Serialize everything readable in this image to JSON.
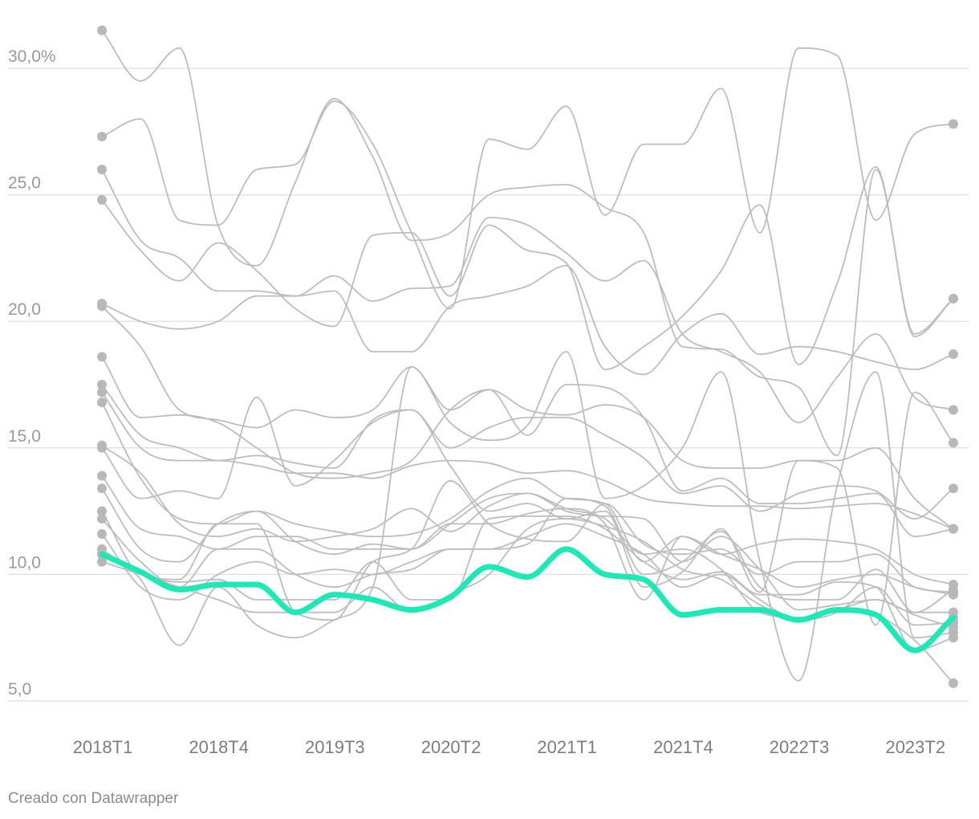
{
  "footer": {
    "credit": "Creado con Datawrapper"
  },
  "colors": {
    "background_lines": "#bdbdbd",
    "endpoint_dots": "#b8b8b8",
    "highlight": "#1de9b6",
    "gridlines": "#e3e3e3"
  },
  "chart_data": {
    "type": "line",
    "title": "",
    "xlabel": "",
    "ylabel": "",
    "ylim": [
      5,
      31.5
    ],
    "yticks": [
      {
        "value": 30,
        "label": "30,0%"
      },
      {
        "value": 25,
        "label": "25,0"
      },
      {
        "value": 20,
        "label": "20,0"
      },
      {
        "value": 15,
        "label": "15,0"
      },
      {
        "value": 10,
        "label": "10,0"
      },
      {
        "value": 5,
        "label": "5,0"
      }
    ],
    "x": [
      "2018T1",
      "2018T2",
      "2018T3",
      "2018T4",
      "2019T1",
      "2019T2",
      "2019T3",
      "2019T4",
      "2020T1",
      "2020T2",
      "2020T3",
      "2020T4",
      "2021T1",
      "2021T2",
      "2021T3",
      "2021T4",
      "2022T1",
      "2022T2",
      "2022T3",
      "2022T4",
      "2023T1",
      "2023T2",
      "2023T3"
    ],
    "xtick_labels": [
      "2018T1",
      "2018T4",
      "2019T3",
      "2020T2",
      "2021T1",
      "2021T4",
      "2022T3",
      "2023T2"
    ],
    "grid": true,
    "legend": "none",
    "highlight_series_index": 0,
    "series": [
      {
        "values": [
          10.8,
          10.1,
          9.4,
          9.6,
          9.6,
          8.5,
          9.2,
          9.0,
          8.6,
          9.1,
          10.3,
          9.9,
          11.0,
          10.0,
          9.8,
          8.4,
          8.6,
          8.6,
          8.2,
          8.6,
          8.4,
          7.0,
          8.3
        ]
      },
      {
        "values": [
          31.5,
          29.5,
          30.8,
          23.8,
          22.2,
          25.5,
          28.8,
          26.5,
          23.2,
          23.5,
          25.0,
          25.3,
          25.4,
          24.5,
          23.5,
          19.0,
          18.9,
          17.8,
          17.4,
          14.7,
          26.0,
          19.5,
          20.9
        ]
      },
      {
        "values": [
          27.3,
          28.0,
          24.0,
          23.8,
          26.0,
          26.2,
          28.7,
          27.0,
          23.5,
          20.5,
          27.2,
          26.8,
          28.5,
          24.2,
          27.0,
          27.0,
          29.2,
          23.5,
          30.8,
          30.5,
          24.0,
          27.4,
          27.8
        ]
      },
      {
        "values": [
          26.0,
          23.2,
          22.5,
          21.2,
          21.2,
          21.0,
          21.8,
          20.8,
          21.3,
          21.4,
          24.1,
          23.8,
          22.7,
          21.6,
          22.4,
          19.5,
          18.8,
          18.0,
          16.0,
          17.8,
          19.5,
          17.0,
          16.5
        ]
      },
      {
        "values": [
          24.8,
          22.8,
          21.6,
          23.1,
          22.0,
          20.5,
          19.8,
          23.4,
          23.5,
          21.0,
          23.8,
          22.8,
          22.3,
          18.1,
          19.0,
          20.2,
          22.0,
          24.6,
          18.3,
          21.5,
          26.1,
          19.4,
          20.9
        ]
      },
      {
        "values": [
          20.7,
          20.0,
          19.7,
          20.0,
          21.0,
          21.0,
          21.2,
          18.8,
          18.8,
          20.6,
          21.0,
          21.4,
          22.2,
          19.0,
          17.9,
          19.5,
          20.3,
          18.7,
          19.0,
          18.8,
          18.4,
          18.1,
          18.7
        ]
      },
      {
        "values": [
          20.6,
          19.0,
          16.5,
          16.1,
          15.8,
          16.5,
          16.2,
          16.5,
          18.2,
          16.5,
          17.3,
          15.5,
          17.5,
          17.4,
          16.2,
          13.3,
          13.8,
          12.8,
          12.8,
          13.0,
          13.2,
          11.5,
          11.8
        ]
      },
      {
        "values": [
          18.6,
          16.2,
          16.3,
          16.0,
          15.0,
          14.0,
          13.8,
          14.0,
          14.5,
          16.5,
          17.3,
          16.5,
          16.3,
          16.7,
          16.2,
          14.5,
          14.2,
          14.2,
          14.5,
          14.5,
          15.0,
          13.0,
          11.8
        ]
      },
      {
        "values": [
          17.5,
          15.5,
          15.0,
          14.5,
          14.7,
          14.4,
          14.2,
          16.1,
          16.5,
          15.0,
          15.8,
          16.2,
          16.2,
          15.5,
          14.6,
          13.2,
          13.5,
          12.5,
          13.2,
          13.5,
          13.3,
          12.2,
          13.4
        ]
      },
      {
        "values": [
          17.2,
          15.0,
          14.5,
          14.5,
          14.3,
          14.0,
          14.0,
          13.8,
          14.3,
          14.5,
          14.4,
          14.0,
          14.1,
          13.7,
          13.0,
          12.8,
          12.7,
          12.7,
          12.6,
          12.7,
          12.8,
          12.4,
          11.8
        ]
      },
      {
        "values": [
          16.8,
          13.8,
          12.2,
          12.0,
          12.5,
          12.0,
          11.7,
          11.5,
          11.6,
          12.2,
          13.3,
          13.8,
          13.0,
          12.8,
          10.5,
          11.5,
          10.8,
          10.2,
          9.5,
          9.8,
          10.0,
          9.5,
          9.2
        ]
      },
      {
        "values": [
          15.1,
          14.0,
          12.0,
          11.5,
          11.8,
          11.3,
          11.5,
          11.8,
          12.6,
          11.7,
          12.7,
          13.2,
          12.6,
          12.2,
          10.8,
          11.0,
          10.2,
          8.5,
          8.3,
          8.6,
          9.0,
          8.4,
          7.9
        ]
      },
      {
        "values": [
          15.0,
          13.0,
          13.3,
          13.0,
          17.0,
          13.5,
          14.5,
          16.0,
          16.5,
          14.3,
          12.5,
          12.8,
          12.2,
          12.5,
          9.5,
          10.1,
          11.8,
          9.3,
          14.5,
          14.2,
          8.0,
          17.2,
          15.2
        ]
      },
      {
        "values": [
          13.9,
          11.8,
          11.5,
          11.0,
          11.5,
          11.5,
          11.0,
          11.0,
          11.0,
          12.0,
          13.0,
          13.2,
          12.5,
          12.3,
          12.2,
          10.5,
          11.5,
          10.2,
          8.6,
          8.8,
          9.0,
          8.5,
          8.5
        ]
      },
      {
        "values": [
          13.4,
          11.0,
          10.5,
          12.0,
          12.5,
          11.3,
          10.8,
          11.2,
          11.0,
          12.0,
          12.0,
          12.4,
          12.6,
          12.0,
          9.0,
          11.5,
          10.8,
          11.2,
          11.4,
          11.3,
          11.0,
          10.0,
          9.6
        ]
      },
      {
        "values": [
          12.5,
          10.0,
          9.8,
          12.0,
          12.0,
          8.5,
          8.2,
          10.5,
          11.0,
          13.7,
          12.0,
          11.4,
          11.3,
          12.8,
          11.2,
          10.8,
          11.0,
          10.0,
          10.5,
          10.5,
          10.8,
          9.5,
          9.3
        ]
      },
      {
        "values": [
          12.2,
          10.5,
          9.5,
          11.0,
          11.0,
          10.0,
          9.5,
          10.0,
          10.2,
          11.0,
          11.0,
          11.2,
          13.0,
          12.7,
          10.0,
          10.5,
          11.7,
          9.5,
          9.0,
          9.0,
          10.2,
          8.5,
          9.4
        ]
      },
      {
        "values": [
          11.6,
          9.5,
          9.0,
          10.0,
          10.5,
          10.0,
          10.2,
          10.0,
          10.5,
          11.0,
          11.0,
          11.5,
          12.0,
          11.5,
          10.8,
          9.5,
          10.0,
          9.0,
          8.2,
          8.5,
          9.5,
          8.0,
          8.1
        ]
      },
      {
        "values": [
          11.0,
          9.8,
          7.2,
          9.5,
          8.0,
          7.5,
          8.2,
          9.5,
          18.2,
          16.0,
          15.3,
          15.9,
          18.8,
          13.0,
          13.5,
          15.0,
          18.0,
          10.5,
          5.8,
          13.5,
          18.0,
          7.5,
          7.7
        ]
      },
      {
        "values": [
          10.8,
          10.0,
          9.7,
          9.8,
          9.0,
          9.0,
          9.0,
          10.5,
          9.0,
          9.0,
          12.2,
          12.3,
          12.3,
          11.8,
          10.5,
          9.8,
          10.1,
          9.2,
          9.2,
          9.7,
          9.5,
          7.0,
          7.5
        ]
      },
      {
        "values": [
          10.5,
          10.0,
          9.5,
          9.0,
          8.5,
          8.5,
          8.5,
          9.5,
          8.5,
          9.2,
          10.0,
          11.8,
          12.2,
          11.9,
          11.3,
          10.2,
          9.8,
          8.8,
          8.2,
          8.6,
          8.4,
          7.4,
          5.7
        ]
      }
    ]
  }
}
